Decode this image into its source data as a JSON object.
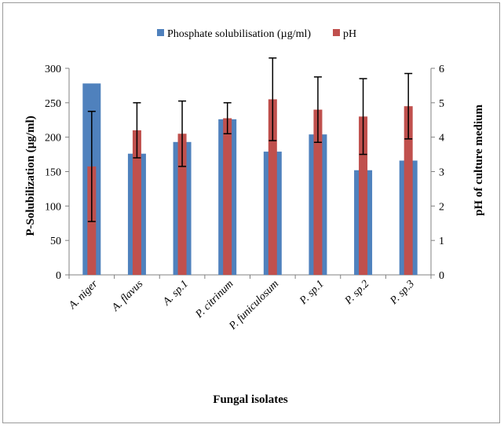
{
  "chart_data": {
    "type": "bar",
    "legend_position": "top",
    "grid": false,
    "categories": [
      "A. niger",
      "A. flavus",
      "A. sp.1",
      "P. citrinum",
      "P. funiculosum",
      "P. sp.1",
      "P. sp.2",
      "P. sp.3"
    ],
    "series": [
      {
        "name": "Phosphate solubilisation (µg/ml)",
        "axis": "left",
        "color": "#4f81bd",
        "values": [
          278,
          176,
          193,
          226,
          179,
          204,
          152,
          166
        ]
      },
      {
        "name": "pH",
        "axis": "right",
        "color": "#c0504d",
        "values": [
          3.15,
          4.2,
          4.1,
          4.55,
          5.1,
          4.8,
          4.6,
          4.9
        ],
        "error": [
          1.6,
          0.8,
          0.95,
          0.45,
          1.2,
          0.95,
          1.1,
          0.95
        ]
      }
    ],
    "xlabel": "Fungal isolates",
    "ylabel": "P-Solubilization (µg/ml)",
    "y2label": "pH of culture medium",
    "ylim": [
      0,
      300
    ],
    "y2lim": [
      0,
      6
    ],
    "yticks": [
      "0",
      "50",
      "100",
      "150",
      "200",
      "250",
      "300"
    ],
    "y2ticks": [
      "0",
      "1",
      "2",
      "3",
      "4",
      "5",
      "6"
    ]
  }
}
